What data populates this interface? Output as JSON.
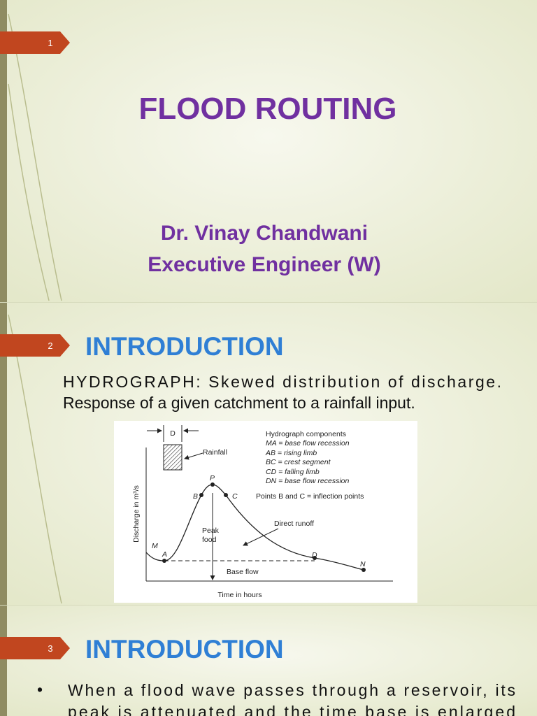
{
  "slides": [
    {
      "number": "1",
      "title": "FLOOD ROUTING",
      "author": "Dr. Vinay Chandwani",
      "role": "Executive Engineer (W)"
    },
    {
      "number": "2",
      "title": "INTRODUCTION",
      "text": [
        "HYDROGRAPH: Skewed distribution of discharge.",
        "Response of a given catchment to a rainfall input."
      ],
      "figure": {
        "d_label": "D",
        "rainfall": "Rainfall",
        "legend_title": "Hydrograph components",
        "legend": [
          "MA = base flow recession",
          "AB = rising limb",
          "BC = crest segment",
          "CD = falling limb",
          "DN = base flow recession"
        ],
        "points": {
          "P": "P",
          "B": "B",
          "C": "C",
          "M": "M",
          "A": "A",
          "D": "D",
          "N": "N"
        },
        "inflection": "Points B and C = inflection points",
        "direct_runoff": "Direct runoff",
        "peak": [
          "Peak",
          "food"
        ],
        "base_flow": "Base flow",
        "x_label": "Time in hours",
        "y_label": "Discharge in m³/s"
      }
    },
    {
      "number": "3",
      "title": "INTRODUCTION",
      "bullet": "•",
      "lines": [
        "When a flood wave passes through a reservoir, its",
        "peak is attenuated and the time base is enlarged"
      ]
    }
  ]
}
